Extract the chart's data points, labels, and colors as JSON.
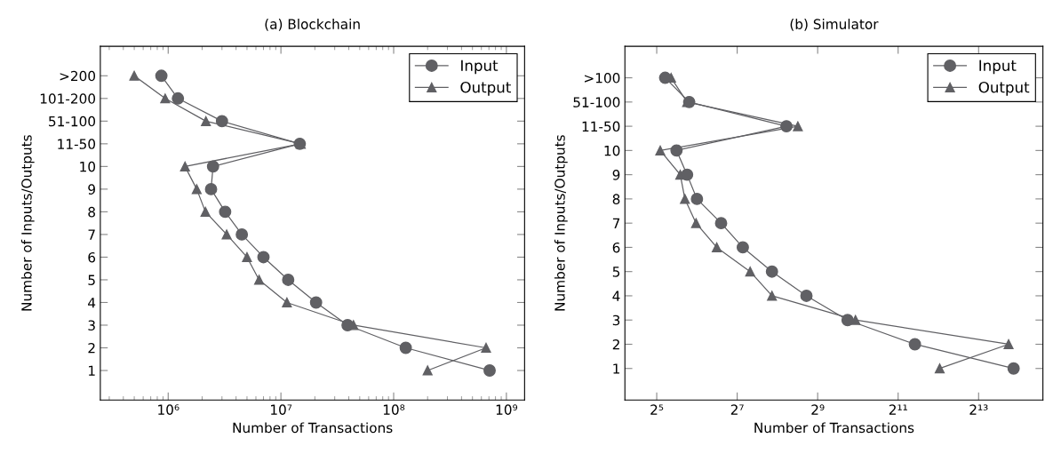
{
  "chart_data": [
    {
      "type": "line",
      "title": "(a) Blockchain",
      "xlabel": "Number of Transactions",
      "ylabel": "Number of Inputs/Outputs",
      "orientation": "horizontal",
      "log": "x",
      "legend": "top right",
      "grid": false,
      "categories": [
        ">200",
        "101-200",
        "51-100",
        "11-50",
        "10",
        "9",
        "8",
        "7",
        "6",
        "5",
        "4",
        "3",
        "2",
        "1"
      ],
      "xlim": [
        250000,
        1450000000
      ],
      "xticks": [
        {
          "value": 1000000,
          "label": "10⁶"
        },
        {
          "value": 10000000,
          "label": "10⁷"
        },
        {
          "value": 100000000,
          "label": "10⁸"
        },
        {
          "value": 1000000000,
          "label": "10⁹"
        }
      ],
      "series": [
        {
          "name": "Input",
          "color": "#606064",
          "marker": "circle",
          "values": [
            870000,
            1220000,
            3000000,
            14700000,
            2500000,
            2400000,
            3200000,
            4500000,
            7000000,
            11600000,
            20500000,
            39000000,
            128000000,
            710000000
          ]
        },
        {
          "name": "Output",
          "color": "#606064",
          "marker": "triangle",
          "values": [
            500000,
            940000,
            2160000,
            15000000,
            1410000,
            1790000,
            2140000,
            3300000,
            5000000,
            6400000,
            11300000,
            44000000,
            660000000,
            200000000
          ]
        }
      ]
    },
    {
      "type": "line",
      "title": "(b) Simulator",
      "xlabel": "Number of Transactions",
      "ylabel": "Number of Inputs/Outputs",
      "orientation": "horizontal",
      "log": "x",
      "legend": "top right",
      "grid": false,
      "categories": [
        ">100",
        "51-100",
        "11-50",
        "10",
        "9",
        "8",
        "7",
        "6",
        "5",
        "4",
        "3",
        "2",
        "1"
      ],
      "xlim": [
        18.5,
        24800
      ],
      "xticks": [
        {
          "value": 32,
          "label": "2⁵"
        },
        {
          "value": 128,
          "label": "2⁷"
        },
        {
          "value": 512,
          "label": "2⁹"
        },
        {
          "value": 2048,
          "label": "2¹¹"
        },
        {
          "value": 8192,
          "label": "2¹³"
        }
      ],
      "series": [
        {
          "name": "Input",
          "color": "#606064",
          "marker": "circle",
          "values": [
            37,
            56,
            299,
            45,
            54,
            64,
            97,
            141,
            233,
            422,
            857,
            2734,
            14970
          ]
        },
        {
          "name": "Output",
          "color": "#606064",
          "marker": "triangle",
          "values": [
            41,
            54,
            364,
            34,
            48,
            52,
            63,
            90,
            160,
            233,
            982,
            13730,
            4190
          ]
        }
      ]
    }
  ]
}
